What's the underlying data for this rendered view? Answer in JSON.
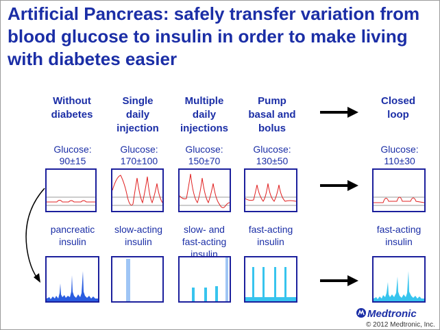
{
  "title": "Artificial Pancreas: safely transfer variation from blood glucose to insulin in order to make living with diabetes easier",
  "columns": [
    {
      "heading": "Without diabetes",
      "glucose_label": "Glucose:",
      "glucose_value": "90±15",
      "insulin_label": "pancreatic insulin"
    },
    {
      "heading": "Single daily injection",
      "glucose_label": "Glucose:",
      "glucose_value": "170±100",
      "insulin_label": "slow-acting insulin"
    },
    {
      "heading": "Multiple daily injections",
      "glucose_label": "Glucose:",
      "glucose_value": "150±70",
      "insulin_label": "slow- and fast-acting insulin"
    },
    {
      "heading": "Pump basal and bolus",
      "glucose_label": "Glucose:",
      "glucose_value": "130±50",
      "insulin_label": "fast-acting insulin"
    },
    {
      "heading": "Closed loop",
      "glucose_label": "Glucose:",
      "glucose_value": "110±30",
      "insulin_label": "fast-acting insulin"
    }
  ],
  "logo": "Medtronic",
  "copyright": "© 2012 Medtronic, Inc.",
  "colors": {
    "title": "#1b2ea6",
    "glucose_curve": "#e02020",
    "insulin_bars": "#37c4ee",
    "pancreatic_insulin": "#2a5de0",
    "frame": "#1b1f9c"
  }
}
